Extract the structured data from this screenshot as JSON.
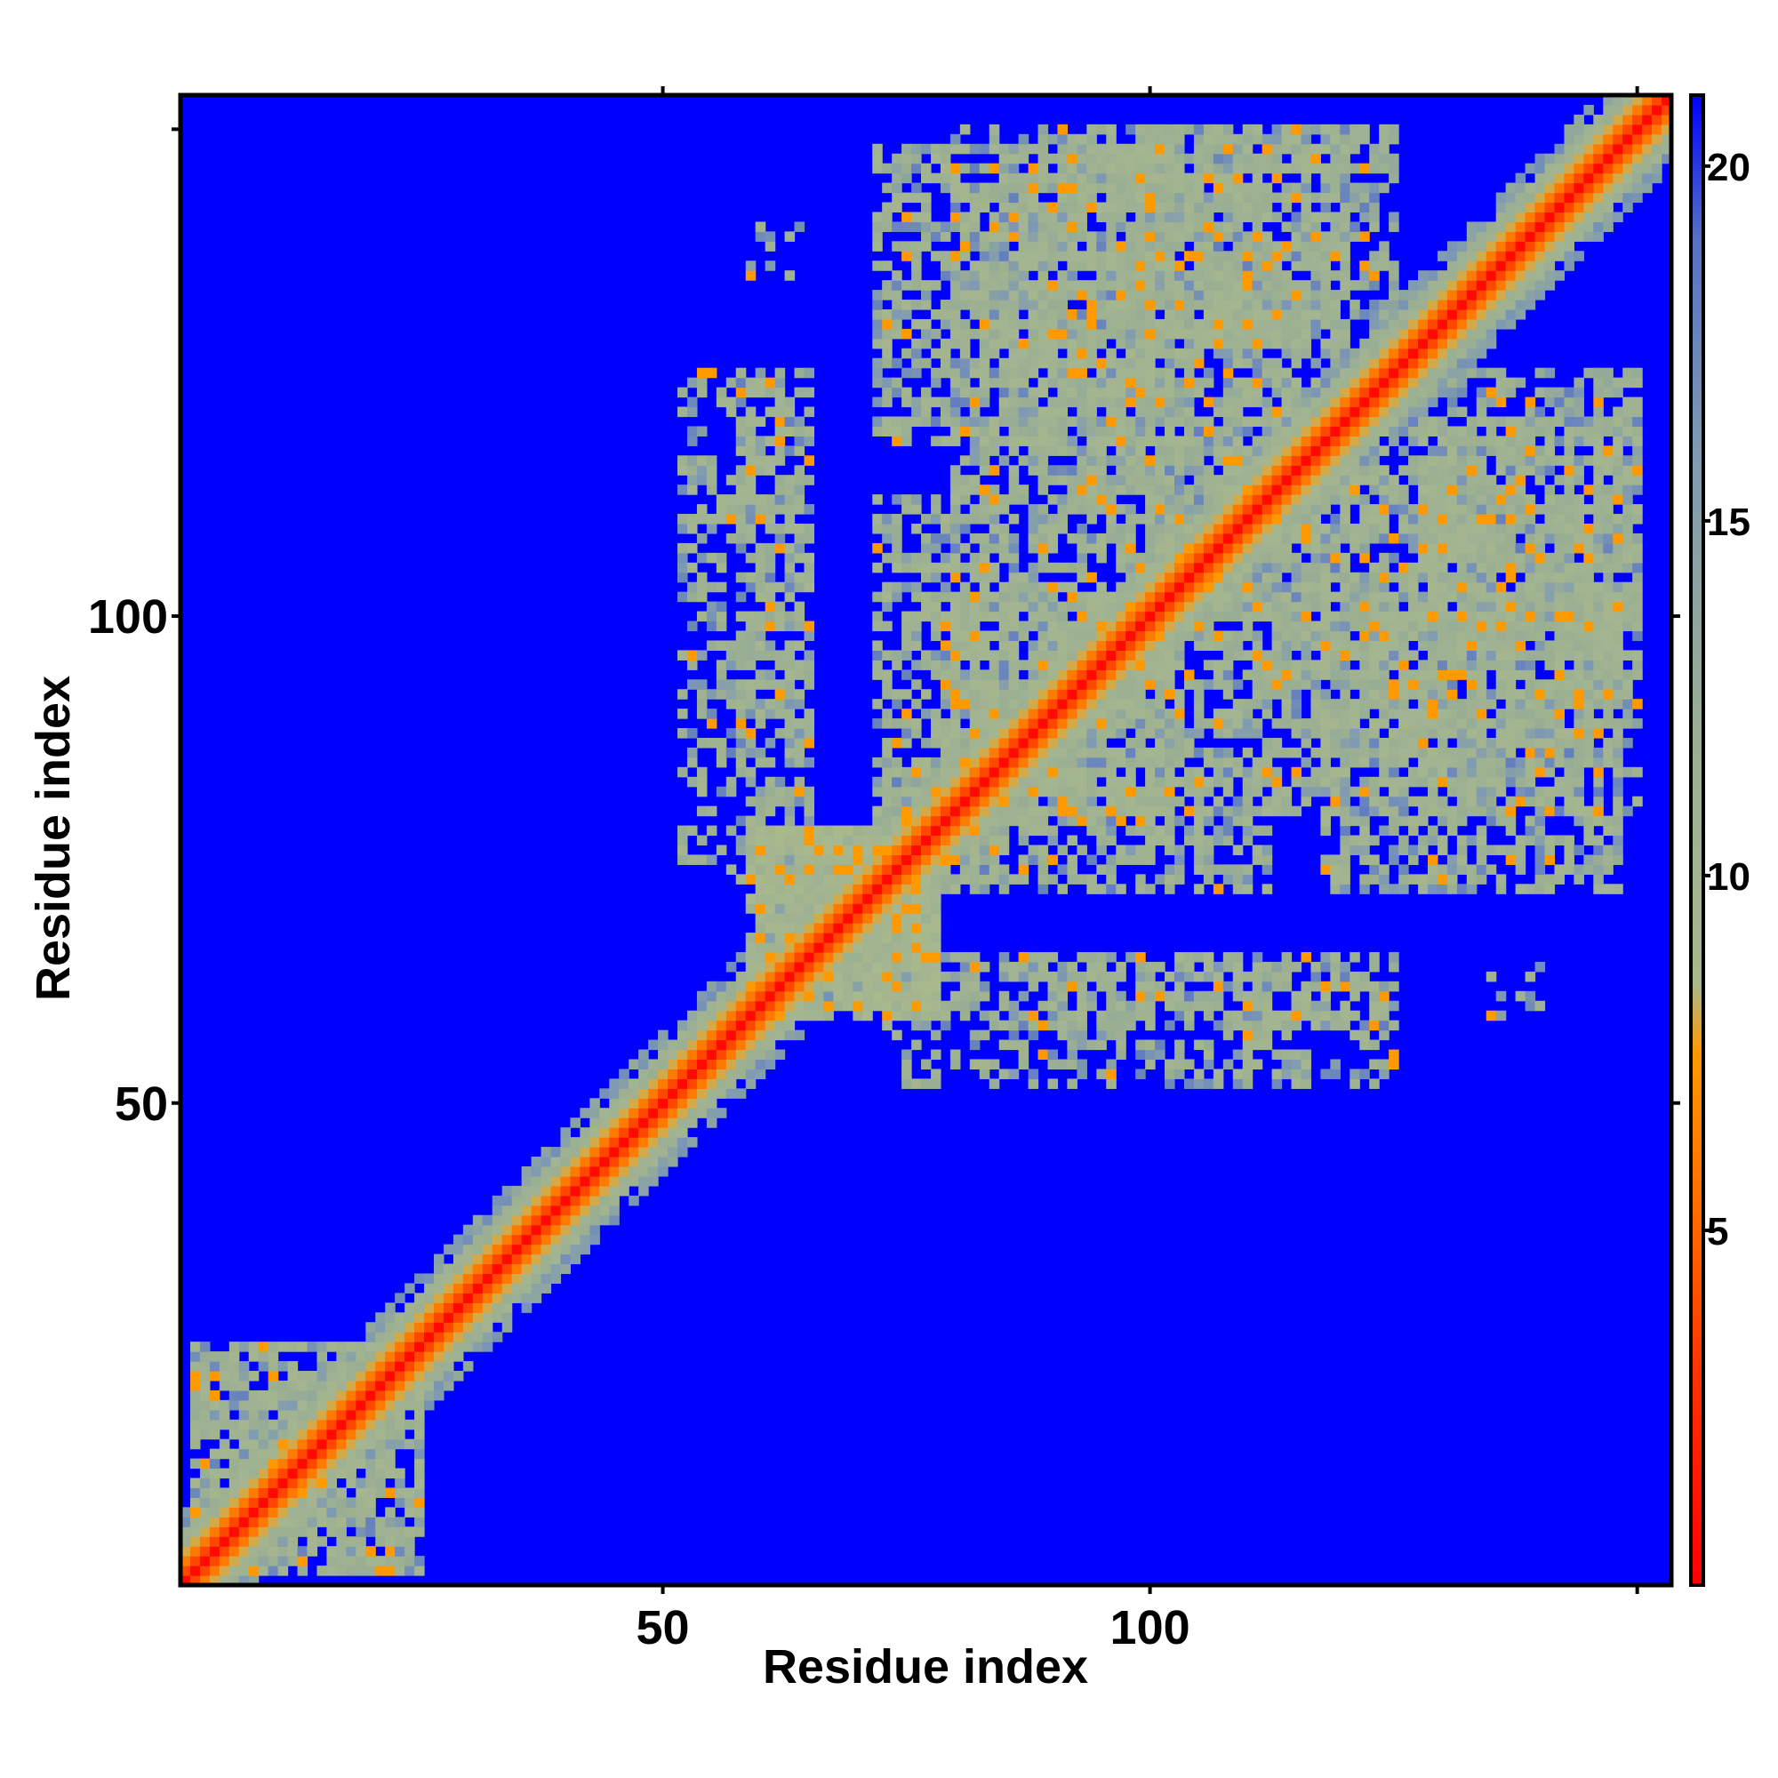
{
  "chart_data": {
    "type": "heatmap",
    "title": "",
    "xlabel": "Residue index",
    "ylabel": "Residue index",
    "x_range": [
      1,
      153
    ],
    "y_range": [
      1,
      153
    ],
    "x_ticks": [
      50,
      100
    ],
    "y_ticks": [
      50,
      100
    ],
    "matrix_size": 153,
    "colorbar": {
      "range": [
        0,
        21
      ],
      "ticks": [
        5,
        10,
        15,
        20
      ],
      "colors": [
        {
          "value": 0,
          "color": "#ff0000"
        },
        {
          "value": 3,
          "color": "#ff3300"
        },
        {
          "value": 5,
          "color": "#ff6600"
        },
        {
          "value": 7.5,
          "color": "#ff9900"
        },
        {
          "value": 8.5,
          "color": "#a9b98e"
        },
        {
          "value": 12,
          "color": "#9aae93"
        },
        {
          "value": 16,
          "color": "#7f9ab2"
        },
        {
          "value": 19,
          "color": "#5570c6"
        },
        {
          "value": 21,
          "color": "#0000ff"
        }
      ]
    },
    "background_value": 21,
    "contact_regions": [
      {
        "x": [
          2,
          25
        ],
        "y": [
          2,
          25
        ],
        "level": 11,
        "density": 0.55
      },
      {
        "x": [
          52,
          65
        ],
        "y": [
          74,
          125
        ],
        "level": 11,
        "density": 0.45
      },
      {
        "x": [
          72,
          100
        ],
        "y": [
          118,
          148
        ],
        "level": 11,
        "density": 0.6
      },
      {
        "x": [
          98,
          125
        ],
        "y": [
          128,
          150
        ],
        "level": 12,
        "density": 0.55
      },
      {
        "x": [
          72,
          85
        ],
        "y": [
          72,
          112
        ],
        "level": 11,
        "density": 0.55
      },
      {
        "x": [
          78,
          108
        ],
        "y": [
          80,
          102
        ],
        "level": 11,
        "density": 0.6
      },
      {
        "x": [
          110,
          150
        ],
        "y": [
          80,
          102
        ],
        "level": 11,
        "density": 0.55
      },
      {
        "x": [
          108,
          148
        ],
        "y": [
          88,
          120
        ],
        "level": 11,
        "density": 0.45
      },
      {
        "x": [
          128,
          150
        ],
        "y": [
          100,
          120
        ],
        "level": 11,
        "density": 0.5
      },
      {
        "x": [
          72,
          125
        ],
        "y": [
          58,
          64
        ],
        "level": 11,
        "density": 0.4
      },
      {
        "x": [
          135,
          140
        ],
        "y": [
          59,
          64
        ],
        "level": 11,
        "density": 0.4
      },
      {
        "x": [
          59,
          78
        ],
        "y": [
          60,
          78
        ],
        "level": 10,
        "density": 0.9
      },
      {
        "x": [
          100,
          115
        ],
        "y": [
          100,
          135
        ],
        "level": 11,
        "density": 0.5
      }
    ]
  }
}
